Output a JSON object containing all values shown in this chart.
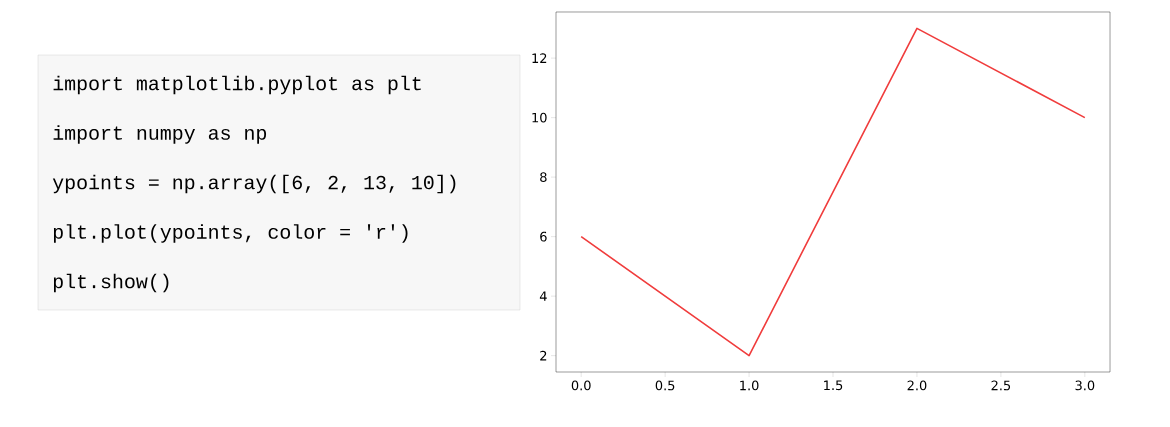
{
  "chart_data": [
    {
      "type": "other",
      "annotations": [
        "import matplotlib.pyplot as plt",
        "import numpy as np",
        "ypoints = np.array([6, 2, 13, 10])",
        "plt.plot(ypoints, color = 'r')",
        "plt.show()"
      ]
    },
    {
      "type": "line",
      "x": [
        0,
        1,
        2,
        3
      ],
      "values": [
        6,
        2,
        13,
        10
      ],
      "color": "#f03c3c",
      "xlim": [
        -0.15,
        3.15
      ],
      "ylim": [
        1.45,
        13.55
      ],
      "xticks": [
        {
          "value": 0,
          "label": "0.0"
        },
        {
          "value": 0.5,
          "label": "0.5"
        },
        {
          "value": 1,
          "label": "1.0"
        },
        {
          "value": 1.5,
          "label": "1.5"
        },
        {
          "value": 2,
          "label": "2.0"
        },
        {
          "value": 2.5,
          "label": "2.5"
        },
        {
          "value": 3,
          "label": "3.0"
        }
      ],
      "yticks": [
        2,
        4,
        6,
        8,
        10,
        12
      ]
    }
  ]
}
